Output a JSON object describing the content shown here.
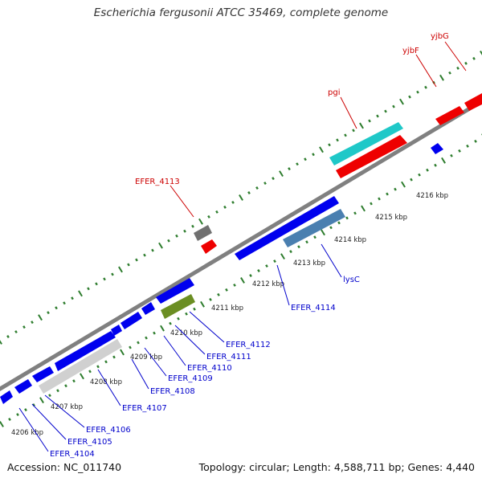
{
  "title": "Escherichia fergusonii ATCC 35469, complete genome",
  "footer": {
    "accession": "Accession: NC_011740",
    "stats": "Topology: circular; Length: 4,588,711 bp; Genes: 4,440"
  },
  "colors": {
    "background": "#ffffff",
    "backbone": "#808080",
    "tick": "#2e7d2e",
    "forward_gene": "#ee0000",
    "reverse_gene": "#0000ee",
    "forward_label": "#cc0000",
    "reverse_label": "#0000cc",
    "cyan_feature": "#1fc8c8",
    "gray_feature": "#707070",
    "olive_feature": "#6b8e23",
    "steelblue_feature": "#4a7fb0",
    "light_gray_feature": "#d0d0d0"
  },
  "kbp_labels": [
    "4206 kbp",
    "4207 kbp",
    "4208 kbp",
    "4209 kbp",
    "4210 kbp",
    "4211 kbp",
    "4212 kbp",
    "4213 kbp",
    "4214 kbp",
    "4215 kbp",
    "4216 kbp"
  ],
  "forward_labels": [
    "EFER_4113",
    "pgi",
    "yjbF",
    "yjbG"
  ],
  "reverse_labels": [
    "EFER_4104",
    "EFER_4105",
    "EFER_4106",
    "EFER_4107",
    "EFER_4108",
    "EFER_4109",
    "EFER_4110",
    "EFER_4111",
    "EFER_4112",
    "EFER_4114",
    "lysC"
  ]
}
